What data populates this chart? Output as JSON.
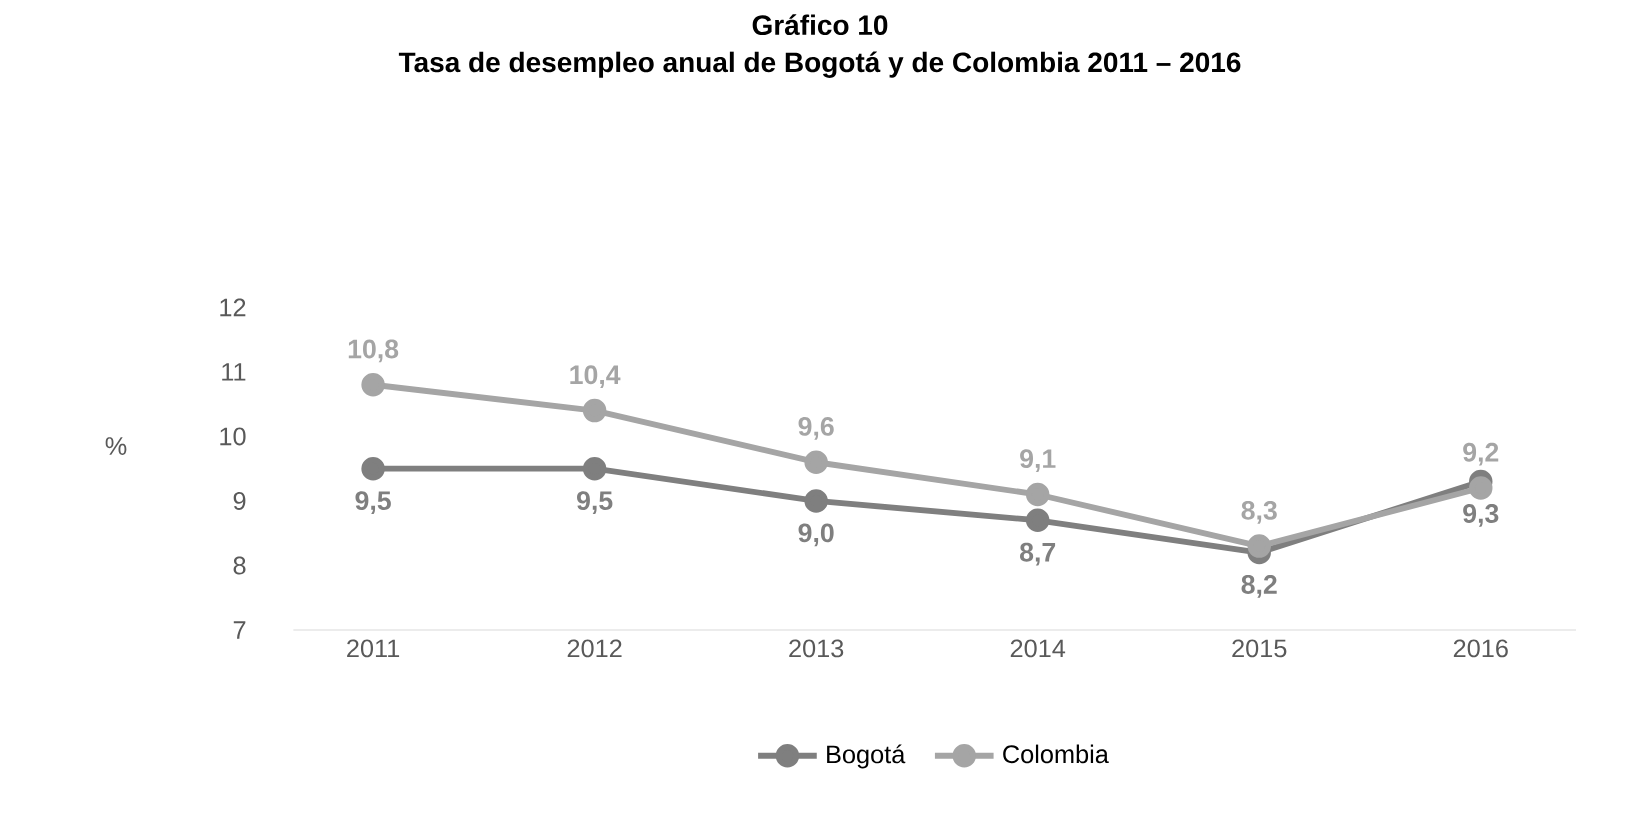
{
  "chart_data": {
    "type": "line",
    "title": "Gráfico 10",
    "subtitle": "Tasa de desempleo anual de Bogotá y de Colombia 2011 – 2016",
    "ylabel": "%",
    "categories": [
      "2011",
      "2012",
      "2013",
      "2014",
      "2015",
      "2016"
    ],
    "series": [
      {
        "name": "Bogotá",
        "color": "#7f7f7f",
        "values": [
          9.5,
          9.5,
          9.0,
          8.7,
          8.2,
          9.3
        ],
        "value_labels": [
          "9,5",
          "9,5",
          "9,0",
          "8,7",
          "8,2",
          "9,3"
        ]
      },
      {
        "name": "Colombia",
        "color": "#a5a5a5",
        "values": [
          10.8,
          10.4,
          9.6,
          9.1,
          8.3,
          9.2
        ],
        "value_labels": [
          "10,8",
          "10,4",
          "9,6",
          "9,1",
          "8,3",
          "9,2"
        ]
      }
    ],
    "ylim": [
      7,
      12
    ],
    "yticks": [
      7,
      8,
      9,
      10,
      11,
      12
    ],
    "grid": false,
    "legend": "bottom",
    "marker": "circle",
    "line_style": "solid"
  }
}
